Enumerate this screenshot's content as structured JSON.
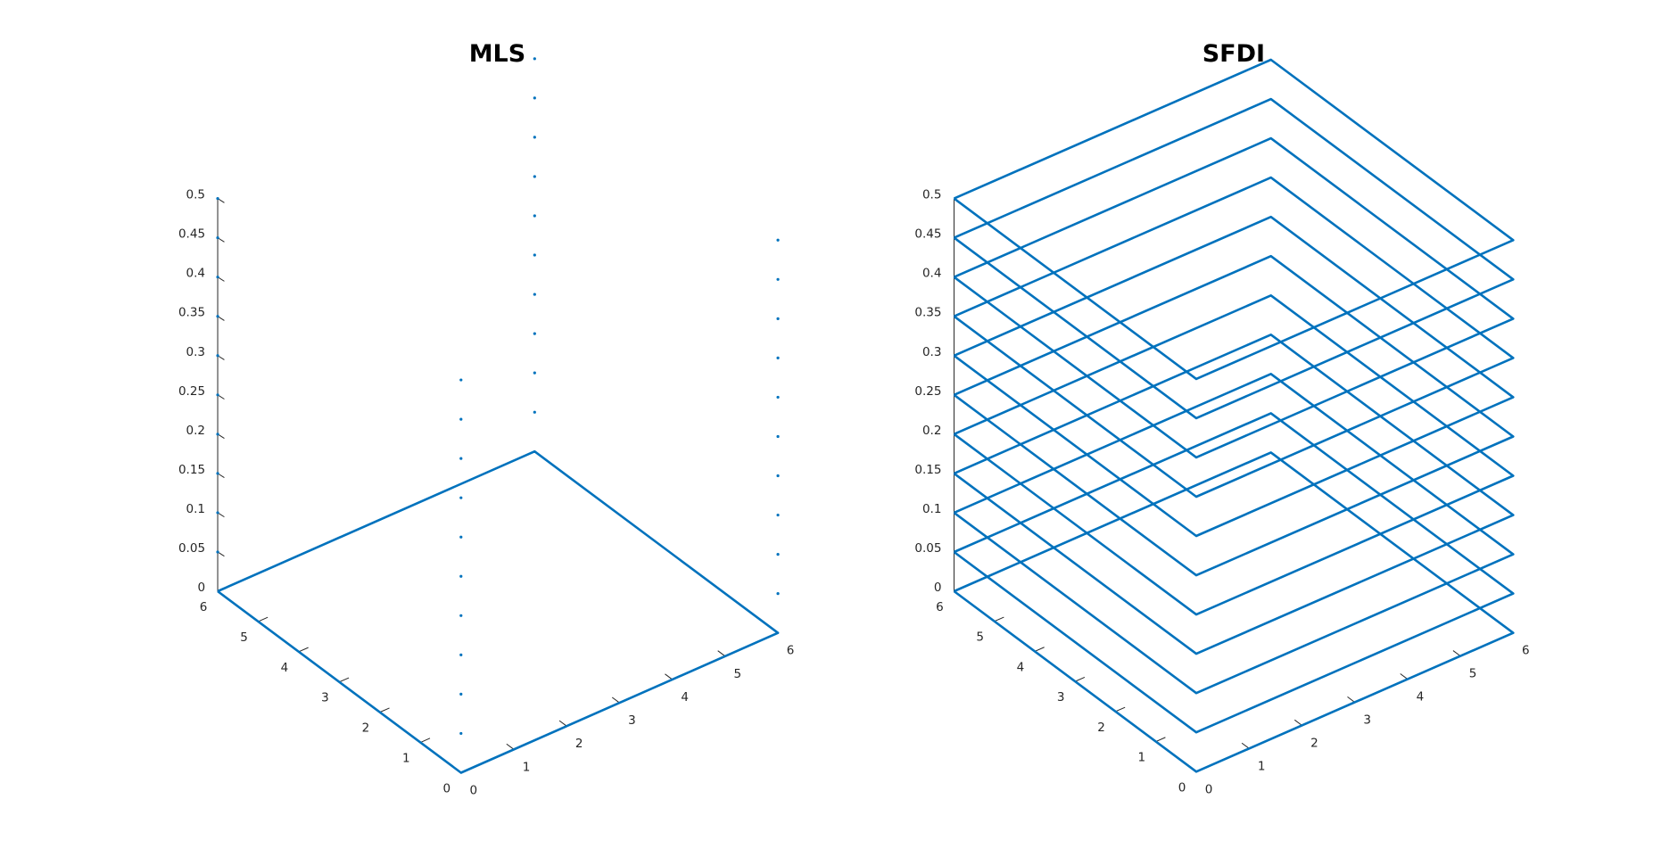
{
  "colors": {
    "series": "#0072bd",
    "axis": "#262626",
    "background": "#ffffff"
  },
  "chart_data": [
    {
      "type": "surface-mesh-3d",
      "title": "MLS",
      "xlabel": "",
      "ylabel": "",
      "zlabel": "",
      "xlim": [
        0,
        6
      ],
      "ylim": [
        0,
        6
      ],
      "zlim": [
        0,
        0.5
      ],
      "xticks": [
        "0",
        "1",
        "2",
        "3",
        "4",
        "5",
        "6"
      ],
      "yticks": [
        "0",
        "1",
        "2",
        "3",
        "4",
        "5",
        "6"
      ],
      "zticks": [
        "0",
        "0.05",
        "0.1",
        "0.15",
        "0.2",
        "0.25",
        "0.3",
        "0.35",
        "0.4",
        "0.45",
        "0.5"
      ],
      "grid": false,
      "series": [
        {
          "kind": "outline",
          "z_levels": [
            0
          ]
        },
        {
          "kind": "points",
          "corner": [
            6,
            6
          ],
          "z": [
            0.05,
            0.1,
            0.15,
            0.2,
            0.25,
            0.3,
            0.35,
            0.4,
            0.45,
            0.5
          ]
        },
        {
          "kind": "points",
          "corner": [
            6,
            0
          ],
          "z": [
            0.05,
            0.1,
            0.15,
            0.2,
            0.25,
            0.3,
            0.35,
            0.4,
            0.45,
            0.5
          ]
        },
        {
          "kind": "points",
          "corner": [
            0,
            6
          ],
          "z": [
            0.05,
            0.1,
            0.15,
            0.2,
            0.25,
            0.3,
            0.35,
            0.4,
            0.45,
            0.5
          ]
        },
        {
          "kind": "points",
          "corner": [
            0,
            0
          ],
          "z": [
            0.05,
            0.1,
            0.15,
            0.2,
            0.25,
            0.3,
            0.35,
            0.4,
            0.45,
            0.5
          ]
        }
      ]
    },
    {
      "type": "surface-mesh-3d",
      "title": "SFDI",
      "xlabel": "",
      "ylabel": "",
      "zlabel": "",
      "xlim": [
        0,
        6
      ],
      "ylim": [
        0,
        6
      ],
      "zlim": [
        0,
        0.5
      ],
      "xticks": [
        "0",
        "1",
        "2",
        "3",
        "4",
        "5",
        "6"
      ],
      "yticks": [
        "0",
        "1",
        "2",
        "3",
        "4",
        "5",
        "6"
      ],
      "zticks": [
        "0",
        "0.05",
        "0.1",
        "0.15",
        "0.2",
        "0.25",
        "0.3",
        "0.35",
        "0.4",
        "0.45",
        "0.5"
      ],
      "grid": false,
      "series": [
        {
          "kind": "outline",
          "z_levels": [
            0,
            0.05,
            0.1,
            0.15,
            0.2,
            0.25,
            0.3,
            0.35,
            0.4,
            0.45,
            0.5
          ]
        }
      ]
    }
  ]
}
